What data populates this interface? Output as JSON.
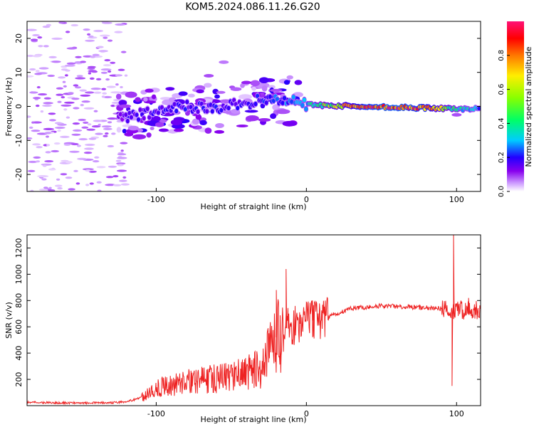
{
  "figure_title": "KOM5.2024.086.11.26.G20",
  "colors": {
    "snr_line": "#ee2222",
    "axes": "#000000",
    "background": "#ffffff"
  },
  "chart_data": [
    {
      "type": "heatmap",
      "title": "KOM5.2024.086.11.26.G20",
      "xlabel": "Height of straight line (km)",
      "ylabel": "Frequency (Hz)",
      "xlim": [
        -186,
        116
      ],
      "ylim": [
        -25,
        25
      ],
      "x_ticks": [
        -100,
        0,
        100
      ],
      "y_ticks": [
        -20,
        -10,
        0,
        10,
        20
      ],
      "colorbar": {
        "label": "Normalized spectral amplitude",
        "range": [
          0,
          1
        ],
        "ticks": [
          "0.0",
          "0.2",
          "0.4",
          "0.6",
          "0.8"
        ],
        "colormap": [
          "#ffffff",
          "#cc99ff",
          "#8800ee",
          "#2200ff",
          "#00ccff",
          "#00ff66",
          "#88ff00",
          "#ffee00",
          "#ff7700",
          "#ff0000",
          "#ff1177"
        ]
      },
      "grid": false,
      "ridge": [
        {
          "x": -120,
          "f": -3.0,
          "a": 0.25
        },
        {
          "x": -100,
          "f": -1.5,
          "a": 0.3
        },
        {
          "x": -80,
          "f": 0.0,
          "a": 0.3
        },
        {
          "x": -60,
          "f": -0.5,
          "a": 0.3
        },
        {
          "x": -40,
          "f": 1.0,
          "a": 0.3
        },
        {
          "x": -25,
          "f": 2.5,
          "a": 0.35
        },
        {
          "x": -10,
          "f": 1.5,
          "a": 0.4
        },
        {
          "x": 0,
          "f": 0.5,
          "a": 0.45
        },
        {
          "x": 20,
          "f": 0.2,
          "a": 0.7
        },
        {
          "x": 40,
          "f": 0.0,
          "a": 0.95
        },
        {
          "x": 60,
          "f": -0.3,
          "a": 1.0
        },
        {
          "x": 80,
          "f": -0.5,
          "a": 0.9
        },
        {
          "x": 100,
          "f": -0.8,
          "a": 0.5
        },
        {
          "x": 116,
          "f": -0.5,
          "a": 0.4
        }
      ]
    },
    {
      "type": "line",
      "xlabel": "Height of straight line (km)",
      "ylabel": "SNR (v/v)",
      "xlim": [
        -186,
        116
      ],
      "ylim": [
        0,
        1300
      ],
      "x_ticks": [
        -100,
        0,
        100
      ],
      "y_ticks": [
        200,
        400,
        600,
        800,
        1000,
        1200
      ],
      "grid": false,
      "series": [
        {
          "x": [
            -186,
            -170,
            -150,
            -130,
            -120,
            -110,
            -100,
            -90,
            -80,
            -70,
            -60,
            -50,
            -40,
            -30,
            -25,
            -20,
            -15,
            -12,
            -10,
            -5,
            0,
            10,
            20,
            30,
            40,
            50,
            60,
            70,
            80,
            90,
            95,
            98,
            100,
            105,
            110,
            116
          ],
          "y": [
            25,
            22,
            20,
            22,
            30,
            60,
            130,
            160,
            180,
            200,
            210,
            220,
            250,
            280,
            400,
            520,
            580,
            600,
            600,
            620,
            640,
            660,
            700,
            740,
            750,
            760,
            755,
            750,
            745,
            740,
            720,
            700,
            750,
            720,
            730,
            725
          ]
        }
      ],
      "spikes": [
        {
          "x": -13.5,
          "y": 1040
        },
        {
          "x": -20,
          "y": 880
        },
        {
          "x": 4,
          "y": 800
        },
        {
          "x": 98,
          "y": 1300
        },
        {
          "x": 97,
          "y": 150
        },
        {
          "x": 108,
          "y": 820
        }
      ]
    }
  ]
}
